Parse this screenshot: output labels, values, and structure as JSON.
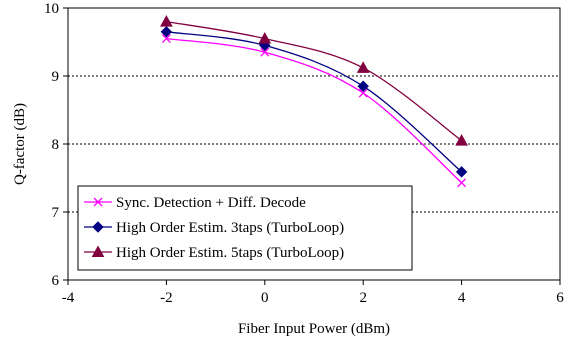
{
  "chart_data": {
    "type": "line",
    "title": "",
    "xlabel": "Fiber Input Power  (dBm)",
    "ylabel": "Q-factor (dB)",
    "xlim": [
      -4,
      6
    ],
    "ylim": [
      6,
      10
    ],
    "xticks": [
      -4,
      -2,
      0,
      2,
      4,
      6
    ],
    "yticks": [
      6,
      7,
      8,
      9,
      10
    ],
    "grid": "horizontal dotted",
    "legend_position": "bottom-left",
    "series": [
      {
        "name": "Sync. Detection + Diff. Decode",
        "marker": "x",
        "color": "#ff00ff",
        "x": [
          -2,
          0,
          2,
          4
        ],
        "y": [
          9.55,
          9.35,
          8.75,
          7.43
        ]
      },
      {
        "name": "High Order Estim. 3taps (TurboLoop)",
        "marker": "diamond",
        "color": "#000080",
        "x": [
          -2,
          0,
          2,
          4
        ],
        "y": [
          9.65,
          9.45,
          8.85,
          7.59
        ]
      },
      {
        "name": "High Order Estim. 5taps (TurboLoop)",
        "marker": "triangle",
        "color": "#800040",
        "x": [
          -2,
          0,
          2,
          4
        ],
        "y": [
          9.8,
          9.55,
          9.12,
          8.05
        ]
      }
    ]
  }
}
